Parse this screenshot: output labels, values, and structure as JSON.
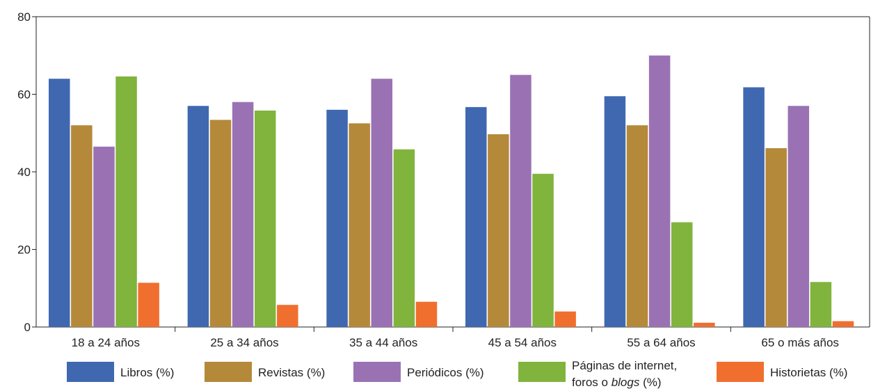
{
  "chart_data": {
    "type": "bar",
    "title": "",
    "xlabel": "",
    "ylabel": "",
    "ylim": [
      0,
      80
    ],
    "yticks": [
      0,
      20,
      40,
      60,
      80
    ],
    "grid": false,
    "legend_position": "bottom",
    "categories": [
      "18 a 24 años",
      "25 a 34 años",
      "35 a 44 años",
      "45 a 54 años",
      "55 a 64 años",
      "65 o más años"
    ],
    "series": [
      {
        "name": "Libros (%)",
        "color": "#3f68b1",
        "values": [
          64,
          57,
          56,
          56.7,
          59.5,
          61.8
        ]
      },
      {
        "name": "Revistas (%)",
        "color": "#b5893a",
        "values": [
          52,
          53.4,
          52.5,
          49.7,
          52,
          46.1
        ]
      },
      {
        "name": "Periódicos (%)",
        "color": "#9a72b4",
        "values": [
          46.5,
          58,
          64,
          65,
          70,
          57
        ]
      },
      {
        "name": "Páginas de internet, foros o blogs (%)",
        "name_line1": "Páginas de internet,",
        "name_line2_pre": "foros o ",
        "name_line2_em": "blogs",
        "name_line2_post": " (%)",
        "color": "#80b43d",
        "values": [
          64.6,
          55.8,
          45.8,
          39.5,
          27,
          11.6
        ]
      },
      {
        "name": "Historietas (%)",
        "color": "#f06f2f",
        "values": [
          11.4,
          5.7,
          6.5,
          4,
          1.1,
          1.5
        ]
      }
    ]
  }
}
